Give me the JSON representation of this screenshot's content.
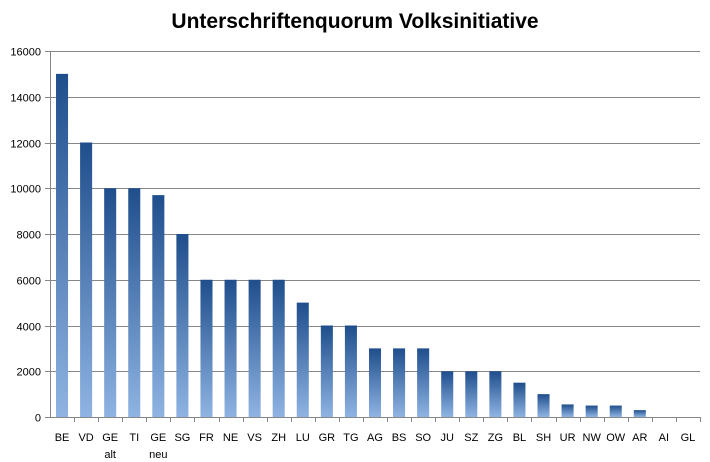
{
  "chart_data": {
    "type": "bar",
    "title": "Unterschriftenquorum Volksinitiative",
    "xlabel": "",
    "ylabel": "",
    "ylim": [
      0,
      16000
    ],
    "yticks": [
      0,
      2000,
      4000,
      6000,
      8000,
      10000,
      12000,
      14000,
      16000
    ],
    "grid": true,
    "legend": "none",
    "categories": [
      [
        "BE"
      ],
      [
        "VD"
      ],
      [
        "GE",
        "alt"
      ],
      [
        "TI"
      ],
      [
        "GE",
        "neu"
      ],
      [
        "SG"
      ],
      [
        "FR"
      ],
      [
        "NE"
      ],
      [
        "VS"
      ],
      [
        "ZH"
      ],
      [
        "LU"
      ],
      [
        "GR"
      ],
      [
        "TG"
      ],
      [
        "AG"
      ],
      [
        "BS"
      ],
      [
        "SO"
      ],
      [
        "JU"
      ],
      [
        "SZ"
      ],
      [
        "ZG"
      ],
      [
        "BL"
      ],
      [
        "SH"
      ],
      [
        "UR"
      ],
      [
        "NW"
      ],
      [
        "OW"
      ],
      [
        "AR"
      ],
      [
        "AI"
      ],
      [
        "GL"
      ]
    ],
    "values": [
      15000,
      12000,
      10000,
      10000,
      9700,
      8000,
      6000,
      6000,
      6000,
      6000,
      5000,
      4000,
      4000,
      3000,
      3000,
      3000,
      2000,
      2000,
      2000,
      1500,
      1000,
      550,
      500,
      500,
      300,
      0,
      0
    ],
    "colors": {
      "bar_top": "#1f4e8c",
      "bar_bottom": "#8fb4e3"
    }
  }
}
